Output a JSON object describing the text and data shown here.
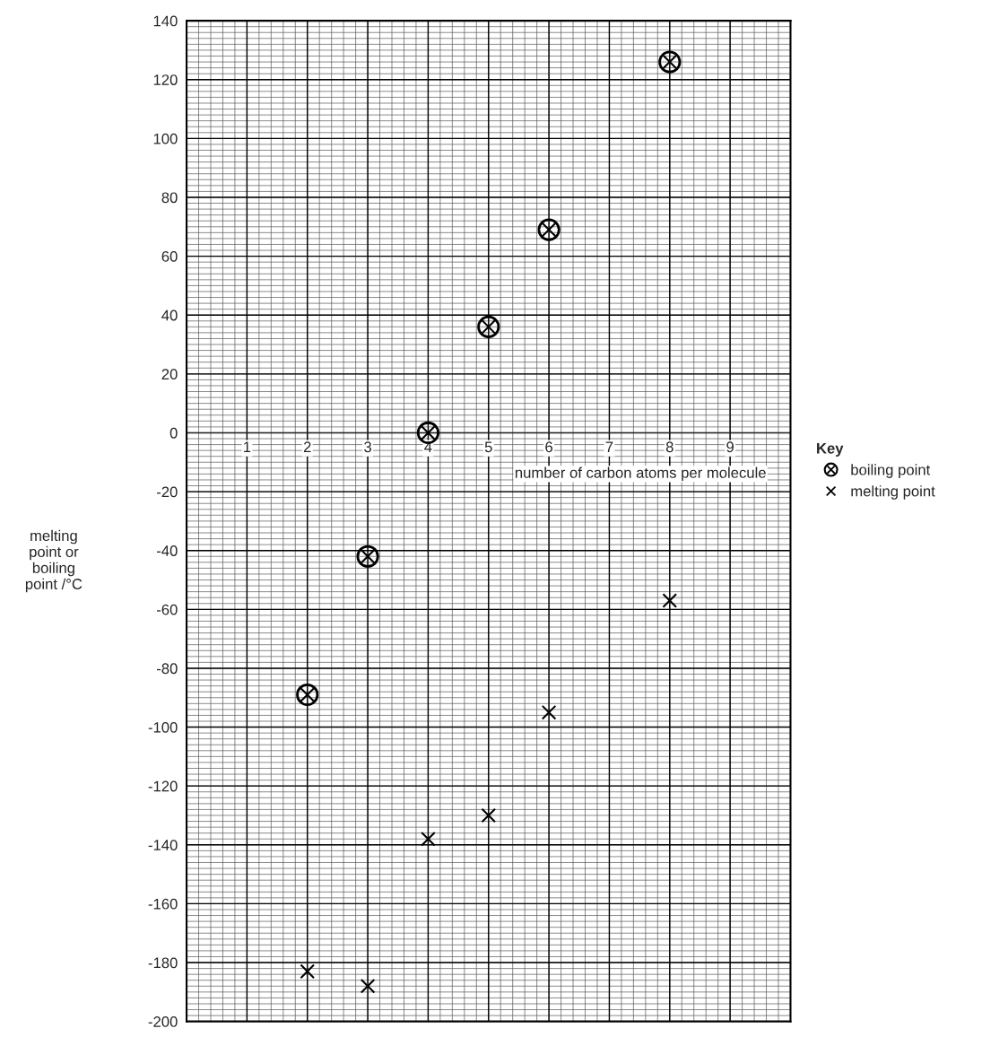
{
  "chart_data": {
    "type": "scatter",
    "xlabel": "number of carbon atoms per molecule",
    "ylabel": "melting\npoint or\nboiling\npoint /°C",
    "legend_title": "Key",
    "xlim": [
      0,
      10
    ],
    "xticks": [
      1,
      2,
      3,
      4,
      5,
      6,
      7,
      8,
      9
    ],
    "ylim": [
      -200,
      140
    ],
    "yticks": [
      -200,
      -180,
      -160,
      -140,
      -120,
      -100,
      -80,
      -60,
      -40,
      -20,
      0,
      20,
      40,
      60,
      80,
      100,
      120,
      140
    ],
    "grid": true,
    "legend": "right",
    "series": [
      {
        "name": "boiling point",
        "color": "#000000",
        "marker": "circle",
        "x": [
          2,
          3,
          4,
          5,
          6,
          8
        ],
        "values": [
          -89,
          -42,
          0,
          36,
          69,
          126
        ]
      },
      {
        "name": "melting point",
        "color": "#000000",
        "marker": "cross",
        "x": [
          2,
          3,
          4,
          5,
          6,
          8
        ],
        "values": [
          -183,
          -188,
          -138,
          -130,
          -95,
          -57
        ]
      }
    ]
  }
}
